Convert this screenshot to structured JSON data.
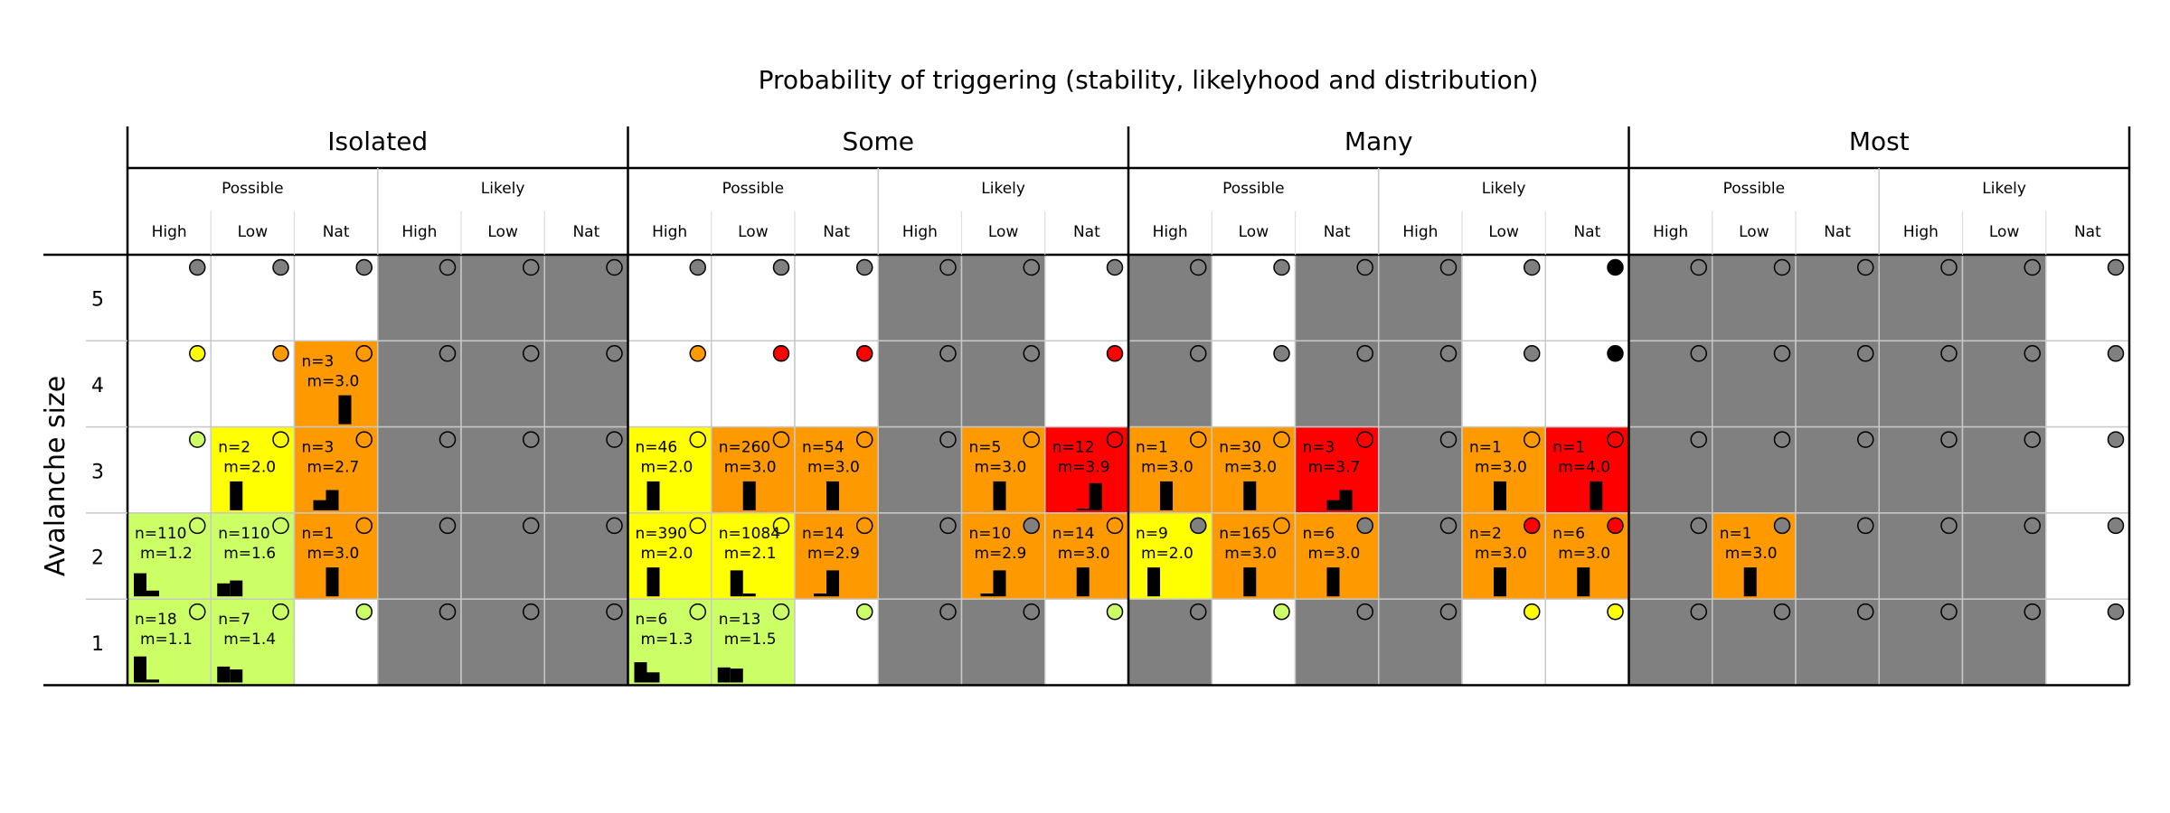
{
  "chart_data": {
    "type": "heatmap",
    "title": "Probability of triggering (stability, likelyhood and distribution)",
    "ylabel": "Avalanche size",
    "y_ticks": [
      "5",
      "4",
      "3",
      "2",
      "1"
    ],
    "distribution_groups": [
      "Isolated",
      "Some",
      "Many",
      "Most"
    ],
    "likelihood_labels": [
      "Possible",
      "Likely"
    ],
    "stability_labels": [
      "High",
      "Low",
      "Nat"
    ],
    "colors": {
      "white": "#ffffff",
      "grey": "#808080",
      "green": "#ccff66",
      "yellow": "#ffff00",
      "orange": "#ff9900",
      "red": "#ff0000",
      "black": "#000000",
      "empty": "#808080"
    },
    "columns": [
      {
        "group": "Isolated",
        "likelihood": "Possible",
        "stability": "High"
      },
      {
        "group": "Isolated",
        "likelihood": "Possible",
        "stability": "Low"
      },
      {
        "group": "Isolated",
        "likelihood": "Possible",
        "stability": "Nat"
      },
      {
        "group": "Isolated",
        "likelihood": "Likely",
        "stability": "High"
      },
      {
        "group": "Isolated",
        "likelihood": "Likely",
        "stability": "Low"
      },
      {
        "group": "Isolated",
        "likelihood": "Likely",
        "stability": "Nat"
      },
      {
        "group": "Some",
        "likelihood": "Possible",
        "stability": "High"
      },
      {
        "group": "Some",
        "likelihood": "Possible",
        "stability": "Low"
      },
      {
        "group": "Some",
        "likelihood": "Possible",
        "stability": "Nat"
      },
      {
        "group": "Some",
        "likelihood": "Likely",
        "stability": "High"
      },
      {
        "group": "Some",
        "likelihood": "Likely",
        "stability": "Low"
      },
      {
        "group": "Some",
        "likelihood": "Likely",
        "stability": "Nat"
      },
      {
        "group": "Many",
        "likelihood": "Possible",
        "stability": "High"
      },
      {
        "group": "Many",
        "likelihood": "Possible",
        "stability": "Low"
      },
      {
        "group": "Many",
        "likelihood": "Possible",
        "stability": "Nat"
      },
      {
        "group": "Many",
        "likelihood": "Likely",
        "stability": "High"
      },
      {
        "group": "Many",
        "likelihood": "Likely",
        "stability": "Low"
      },
      {
        "group": "Many",
        "likelihood": "Likely",
        "stability": "Nat"
      },
      {
        "group": "Most",
        "likelihood": "Possible",
        "stability": "High"
      },
      {
        "group": "Most",
        "likelihood": "Possible",
        "stability": "Low"
      },
      {
        "group": "Most",
        "likelihood": "Possible",
        "stability": "Nat"
      },
      {
        "group": "Most",
        "likelihood": "Likely",
        "stability": "High"
      },
      {
        "group": "Most",
        "likelihood": "Likely",
        "stability": "Low"
      },
      {
        "group": "Most",
        "likelihood": "Likely",
        "stability": "Nat"
      }
    ],
    "rows": [
      {
        "size": "5",
        "cells": [
          {
            "bg": "white",
            "marker": "grey"
          },
          {
            "bg": "white",
            "marker": "grey"
          },
          {
            "bg": "white",
            "marker": "grey"
          },
          {
            "bg": "grey",
            "marker": "empty"
          },
          {
            "bg": "grey",
            "marker": "empty"
          },
          {
            "bg": "grey",
            "marker": "empty"
          },
          {
            "bg": "white",
            "marker": "grey"
          },
          {
            "bg": "white",
            "marker": "grey"
          },
          {
            "bg": "white",
            "marker": "grey"
          },
          {
            "bg": "grey",
            "marker": "empty"
          },
          {
            "bg": "grey",
            "marker": "empty"
          },
          {
            "bg": "white",
            "marker": "grey"
          },
          {
            "bg": "grey",
            "marker": "empty"
          },
          {
            "bg": "white",
            "marker": "grey"
          },
          {
            "bg": "grey",
            "marker": "empty"
          },
          {
            "bg": "grey",
            "marker": "empty"
          },
          {
            "bg": "white",
            "marker": "grey"
          },
          {
            "bg": "white",
            "marker": "black"
          },
          {
            "bg": "grey",
            "marker": "empty"
          },
          {
            "bg": "grey",
            "marker": "empty"
          },
          {
            "bg": "grey",
            "marker": "empty"
          },
          {
            "bg": "grey",
            "marker": "empty"
          },
          {
            "bg": "grey",
            "marker": "empty"
          },
          {
            "bg": "white",
            "marker": "grey"
          }
        ]
      },
      {
        "size": "4",
        "cells": [
          {
            "bg": "white",
            "marker": "yellow"
          },
          {
            "bg": "white",
            "marker": "orange"
          },
          {
            "bg": "orange",
            "marker": "empty",
            "n": "n=3",
            "m": "m=3.0",
            "hist": [
              0,
              0,
              0,
              1,
              0
            ]
          },
          {
            "bg": "grey",
            "marker": "empty"
          },
          {
            "bg": "grey",
            "marker": "empty"
          },
          {
            "bg": "grey",
            "marker": "empty"
          },
          {
            "bg": "white",
            "marker": "orange"
          },
          {
            "bg": "white",
            "marker": "red"
          },
          {
            "bg": "white",
            "marker": "red"
          },
          {
            "bg": "grey",
            "marker": "empty"
          },
          {
            "bg": "grey",
            "marker": "empty"
          },
          {
            "bg": "white",
            "marker": "red"
          },
          {
            "bg": "grey",
            "marker": "empty"
          },
          {
            "bg": "white",
            "marker": "grey"
          },
          {
            "bg": "grey",
            "marker": "empty"
          },
          {
            "bg": "grey",
            "marker": "empty"
          },
          {
            "bg": "white",
            "marker": "grey"
          },
          {
            "bg": "white",
            "marker": "black"
          },
          {
            "bg": "grey",
            "marker": "empty"
          },
          {
            "bg": "grey",
            "marker": "empty"
          },
          {
            "bg": "grey",
            "marker": "empty"
          },
          {
            "bg": "grey",
            "marker": "empty"
          },
          {
            "bg": "grey",
            "marker": "empty"
          },
          {
            "bg": "white",
            "marker": "grey"
          }
        ]
      },
      {
        "size": "3",
        "cells": [
          {
            "bg": "white",
            "marker": "green"
          },
          {
            "bg": "yellow",
            "marker": "empty",
            "n": "n=2",
            "m": "m=2.0",
            "hist": [
              0,
              1,
              0,
              0,
              0
            ]
          },
          {
            "bg": "orange",
            "marker": "empty",
            "n": "n=3",
            "m": "m=2.7",
            "hist": [
              0,
              0.35,
              0.7,
              0,
              0
            ]
          },
          {
            "bg": "grey",
            "marker": "empty"
          },
          {
            "bg": "grey",
            "marker": "empty"
          },
          {
            "bg": "grey",
            "marker": "empty"
          },
          {
            "bg": "yellow",
            "marker": "empty",
            "n": "n=46",
            "m": "m=2.0",
            "hist": [
              0,
              1,
              0,
              0,
              0
            ]
          },
          {
            "bg": "orange",
            "marker": "empty",
            "n": "n=260",
            "m": "m=3.0",
            "hist": [
              0,
              0,
              1,
              0,
              0
            ]
          },
          {
            "bg": "orange",
            "marker": "empty",
            "n": "n=54",
            "m": "m=3.0",
            "hist": [
              0,
              0,
              1,
              0,
              0
            ]
          },
          {
            "bg": "grey",
            "marker": "empty"
          },
          {
            "bg": "orange",
            "marker": "empty",
            "n": "n=5",
            "m": "m=3.0",
            "hist": [
              0,
              0,
              1,
              0,
              0
            ]
          },
          {
            "bg": "red",
            "marker": "empty",
            "n": "n=12",
            "m": "m=3.9",
            "hist": [
              0,
              0,
              0.06,
              0.94,
              0
            ]
          },
          {
            "bg": "orange",
            "marker": "empty",
            "n": "n=1",
            "m": "m=3.0",
            "hist": [
              0,
              0,
              1,
              0,
              0
            ]
          },
          {
            "bg": "orange",
            "marker": "empty",
            "n": "n=30",
            "m": "m=3.0",
            "hist": [
              0,
              0,
              1,
              0,
              0
            ]
          },
          {
            "bg": "red",
            "marker": "empty",
            "n": "n=3",
            "m": "m=3.7",
            "hist": [
              0,
              0,
              0.35,
              0.7,
              0
            ]
          },
          {
            "bg": "grey",
            "marker": "empty"
          },
          {
            "bg": "orange",
            "marker": "empty",
            "n": "n=1",
            "m": "m=3.0",
            "hist": [
              0,
              0,
              1,
              0,
              0
            ]
          },
          {
            "bg": "red",
            "marker": "empty",
            "n": "n=1",
            "m": "m=4.0",
            "hist": [
              0,
              0,
              0,
              1,
              0
            ]
          },
          {
            "bg": "grey",
            "marker": "empty"
          },
          {
            "bg": "grey",
            "marker": "empty"
          },
          {
            "bg": "grey",
            "marker": "empty"
          },
          {
            "bg": "grey",
            "marker": "empty"
          },
          {
            "bg": "grey",
            "marker": "empty"
          },
          {
            "bg": "white",
            "marker": "grey"
          }
        ]
      },
      {
        "size": "2",
        "cells": [
          {
            "bg": "green",
            "marker": "empty",
            "n": "n=110",
            "m": "m=1.2",
            "hist": [
              0.8,
              0.2,
              0,
              0,
              0
            ]
          },
          {
            "bg": "green",
            "marker": "empty",
            "n": "n=110",
            "m": "m=1.6",
            "hist": [
              0.45,
              0.55,
              0,
              0,
              0
            ]
          },
          {
            "bg": "orange",
            "marker": "empty",
            "n": "n=1",
            "m": "m=3.0",
            "hist": [
              0,
              0,
              1,
              0,
              0
            ]
          },
          {
            "bg": "grey",
            "marker": "empty"
          },
          {
            "bg": "grey",
            "marker": "empty"
          },
          {
            "bg": "grey",
            "marker": "empty"
          },
          {
            "bg": "yellow",
            "marker": "empty",
            "n": "n=390",
            "m": "m=2.0",
            "hist": [
              0,
              1,
              0,
              0,
              0
            ]
          },
          {
            "bg": "yellow",
            "marker": "empty",
            "n": "n=1084",
            "m": "m=2.1",
            "hist": [
              0,
              0.9,
              0.1,
              0,
              0
            ]
          },
          {
            "bg": "orange",
            "marker": "empty",
            "n": "n=14",
            "m": "m=2.9",
            "hist": [
              0,
              0.1,
              0.9,
              0,
              0
            ]
          },
          {
            "bg": "grey",
            "marker": "empty"
          },
          {
            "bg": "orange",
            "marker": "grey",
            "n": "n=10",
            "m": "m=2.9",
            "hist": [
              0,
              0.1,
              0.9,
              0,
              0
            ]
          },
          {
            "bg": "orange",
            "marker": "empty",
            "n": "n=14",
            "m": "m=3.0",
            "hist": [
              0,
              0,
              1,
              0,
              0
            ]
          },
          {
            "bg": "yellow",
            "marker": "grey",
            "n": "n=9",
            "m": "m=2.0",
            "hist": [
              0,
              1,
              0,
              0,
              0
            ]
          },
          {
            "bg": "orange",
            "marker": "empty",
            "n": "n=165",
            "m": "m=3.0",
            "hist": [
              0,
              0,
              1,
              0,
              0
            ]
          },
          {
            "bg": "orange",
            "marker": "grey",
            "n": "n=6",
            "m": "m=3.0",
            "hist": [
              0,
              0,
              1,
              0,
              0
            ]
          },
          {
            "bg": "grey",
            "marker": "empty"
          },
          {
            "bg": "orange",
            "marker": "red",
            "n": "n=2",
            "m": "m=3.0",
            "hist": [
              0,
              0,
              1,
              0,
              0
            ]
          },
          {
            "bg": "orange",
            "marker": "red",
            "n": "n=6",
            "m": "m=3.0",
            "hist": [
              0,
              0,
              1,
              0,
              0
            ]
          },
          {
            "bg": "grey",
            "marker": "empty"
          },
          {
            "bg": "orange",
            "marker": "grey",
            "n": "n=1",
            "m": "m=3.0",
            "hist": [
              0,
              0,
              1,
              0,
              0
            ]
          },
          {
            "bg": "grey",
            "marker": "empty"
          },
          {
            "bg": "grey",
            "marker": "empty"
          },
          {
            "bg": "grey",
            "marker": "empty"
          },
          {
            "bg": "white",
            "marker": "grey"
          }
        ]
      },
      {
        "size": "1",
        "cells": [
          {
            "bg": "green",
            "marker": "empty",
            "n": "n=18",
            "m": "m=1.1",
            "hist": [
              0.9,
              0.1,
              0,
              0,
              0
            ]
          },
          {
            "bg": "green",
            "marker": "empty",
            "n": "n=7",
            "m": "m=1.4",
            "hist": [
              0.55,
              0.45,
              0,
              0,
              0
            ]
          },
          {
            "bg": "white",
            "marker": "green"
          },
          {
            "bg": "grey",
            "marker": "empty"
          },
          {
            "bg": "grey",
            "marker": "empty"
          },
          {
            "bg": "grey",
            "marker": "empty"
          },
          {
            "bg": "green",
            "marker": "empty",
            "n": "n=6",
            "m": "m=1.3",
            "hist": [
              0.7,
              0.35,
              0,
              0,
              0
            ]
          },
          {
            "bg": "green",
            "marker": "empty",
            "n": "n=13",
            "m": "m=1.5",
            "hist": [
              0.52,
              0.48,
              0,
              0,
              0
            ]
          },
          {
            "bg": "white",
            "marker": "green"
          },
          {
            "bg": "grey",
            "marker": "empty"
          },
          {
            "bg": "grey",
            "marker": "empty"
          },
          {
            "bg": "white",
            "marker": "green"
          },
          {
            "bg": "grey",
            "marker": "empty"
          },
          {
            "bg": "white",
            "marker": "green"
          },
          {
            "bg": "grey",
            "marker": "empty"
          },
          {
            "bg": "grey",
            "marker": "empty"
          },
          {
            "bg": "white",
            "marker": "yellow"
          },
          {
            "bg": "white",
            "marker": "yellow"
          },
          {
            "bg": "grey",
            "marker": "empty"
          },
          {
            "bg": "grey",
            "marker": "empty"
          },
          {
            "bg": "grey",
            "marker": "empty"
          },
          {
            "bg": "grey",
            "marker": "empty"
          },
          {
            "bg": "grey",
            "marker": "empty"
          },
          {
            "bg": "white",
            "marker": "grey"
          }
        ]
      }
    ]
  }
}
